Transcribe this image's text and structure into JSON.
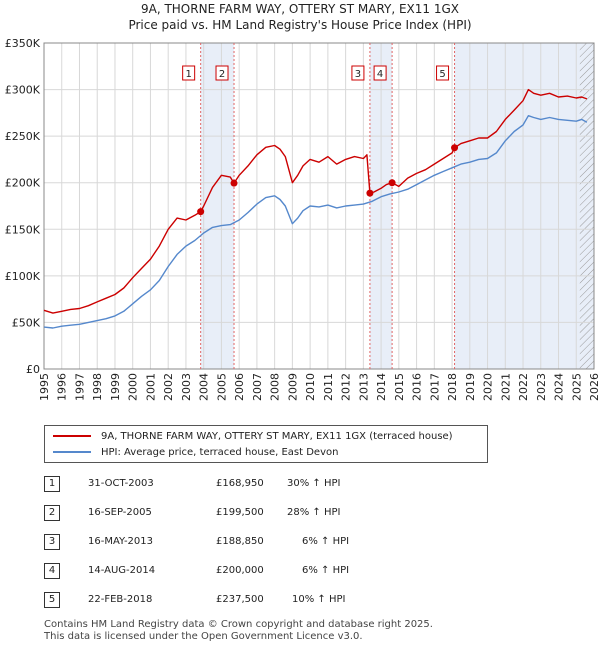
{
  "title_line1": "9A, THORNE FARM WAY, OTTERY ST MARY, EX11 1GX",
  "title_line2": "Price paid vs. HM Land Registry's House Price Index (HPI)",
  "colors": {
    "property": "#cc0000",
    "hpi": "#5588cc",
    "shade": "#e8eef8",
    "event": "#e06666"
  },
  "chart_data": {
    "type": "line",
    "title": "9A, THORNE FARM WAY, OTTERY ST MARY, EX11 1GX - Price paid vs. HM Land Registry's House Price Index (HPI)",
    "xlabel": "",
    "ylabel": "",
    "xlim": [
      1995,
      2026
    ],
    "ylim": [
      0,
      350000
    ],
    "x_ticks": [
      "1995",
      "1996",
      "1997",
      "1998",
      "1999",
      "2000",
      "2001",
      "2002",
      "2003",
      "2004",
      "2005",
      "2006",
      "2007",
      "2008",
      "2009",
      "2010",
      "2011",
      "2012",
      "2013",
      "2014",
      "2015",
      "2016",
      "2017",
      "2018",
      "2019",
      "2020",
      "2021",
      "2022",
      "2023",
      "2024",
      "2025",
      "2026"
    ],
    "y_ticks": [
      {
        "value": 0,
        "label": "£0"
      },
      {
        "value": 50000,
        "label": "£50K"
      },
      {
        "value": 100000,
        "label": "£100K"
      },
      {
        "value": 150000,
        "label": "£150K"
      },
      {
        "value": 200000,
        "label": "£200K"
      },
      {
        "value": 250000,
        "label": "£250K"
      },
      {
        "value": 300000,
        "label": "£300K"
      },
      {
        "value": 350000,
        "label": "£350K"
      }
    ],
    "shaded_spans": [
      [
        2003.83,
        2005.71
      ],
      [
        2013.37,
        2014.62
      ],
      [
        2018.14,
        2026
      ]
    ],
    "hatched_from": 2025.2,
    "grid": true,
    "series": [
      {
        "name": "9A, THORNE FARM WAY, OTTERY ST MARY, EX11 1GX (terraced house)",
        "color": "#cc0000",
        "x": [
          1995,
          1995.5,
          1996,
          1996.5,
          1997,
          1997.5,
          1998,
          1998.5,
          1999,
          1999.5,
          2000,
          2000.5,
          2001,
          2001.5,
          2002,
          2002.5,
          2003,
          2003.5,
          2003.83,
          2004,
          2004.5,
          2005,
          2005.5,
          2005.71,
          2006,
          2006.5,
          2007,
          2007.5,
          2008,
          2008.3,
          2008.6,
          2009,
          2009.3,
          2009.6,
          2010,
          2010.5,
          2011,
          2011.5,
          2012,
          2012.5,
          2013,
          2013.2,
          2013.37,
          2013.6,
          2014,
          2014.3,
          2014.62,
          2015,
          2015.5,
          2016,
          2016.5,
          2017,
          2017.5,
          2018,
          2018.14,
          2018.5,
          2019,
          2019.5,
          2020,
          2020.5,
          2021,
          2021.5,
          2022,
          2022.3,
          2022.6,
          2023,
          2023.5,
          2024,
          2024.5,
          2025,
          2025.3,
          2025.6
        ],
        "values": [
          63000,
          60000,
          62000,
          64000,
          65000,
          68000,
          72000,
          76000,
          80000,
          87000,
          98000,
          108000,
          118000,
          132000,
          150000,
          162000,
          160000,
          165000,
          168950,
          175000,
          195000,
          208000,
          206000,
          199500,
          208000,
          218000,
          230000,
          238000,
          240000,
          236000,
          228000,
          200000,
          208000,
          218000,
          225000,
          222000,
          228000,
          220000,
          225000,
          228000,
          226000,
          230000,
          188850,
          190000,
          194000,
          198000,
          200000,
          196000,
          205000,
          210000,
          214000,
          220000,
          226000,
          232000,
          237500,
          242000,
          245000,
          248000,
          248000,
          255000,
          268000,
          278000,
          288000,
          300000,
          296000,
          294000,
          296000,
          292000,
          293000,
          291000,
          292000,
          290000
        ]
      },
      {
        "name": "HPI: Average price, terraced house, East Devon",
        "color": "#5588cc",
        "x": [
          1995,
          1995.5,
          1996,
          1996.5,
          1997,
          1997.5,
          1998,
          1998.5,
          1999,
          1999.5,
          2000,
          2000.5,
          2001,
          2001.5,
          2002,
          2002.5,
          2003,
          2003.5,
          2004,
          2004.5,
          2005,
          2005.5,
          2006,
          2006.5,
          2007,
          2007.5,
          2008,
          2008.3,
          2008.6,
          2009,
          2009.3,
          2009.6,
          2010,
          2010.5,
          2011,
          2011.5,
          2012,
          2012.5,
          2013,
          2013.5,
          2014,
          2014.5,
          2015,
          2015.5,
          2016,
          2016.5,
          2017,
          2017.5,
          2018,
          2018.5,
          2019,
          2019.5,
          2020,
          2020.5,
          2021,
          2021.5,
          2022,
          2022.3,
          2022.6,
          2023,
          2023.5,
          2024,
          2024.5,
          2025,
          2025.3,
          2025.6
        ],
        "values": [
          45000,
          44000,
          46000,
          47000,
          48000,
          50000,
          52000,
          54000,
          57000,
          62000,
          70000,
          78000,
          85000,
          95000,
          110000,
          123000,
          132000,
          138000,
          146000,
          152000,
          154000,
          155000,
          160000,
          168000,
          177000,
          184000,
          186000,
          182000,
          175000,
          156000,
          162000,
          170000,
          175000,
          174000,
          176000,
          173000,
          175000,
          176000,
          177000,
          180000,
          185000,
          188000,
          190000,
          193000,
          198000,
          203000,
          208000,
          212000,
          216000,
          220000,
          222000,
          225000,
          226000,
          232000,
          245000,
          255000,
          262000,
          272000,
          270000,
          268000,
          270000,
          268000,
          267000,
          266000,
          268000,
          265000
        ]
      }
    ],
    "events": [
      {
        "label": "1",
        "x": 2003.83,
        "value": 168950
      },
      {
        "label": "2",
        "x": 2005.71,
        "value": 199500
      },
      {
        "label": "3",
        "x": 2013.37,
        "value": 188850
      },
      {
        "label": "4",
        "x": 2014.62,
        "value": 200000
      },
      {
        "label": "5",
        "x": 2018.14,
        "value": 237500
      }
    ]
  },
  "legend": {
    "property_label": "9A, THORNE FARM WAY, OTTERY ST MARY, EX11 1GX (terraced house)",
    "hpi_label": "HPI: Average price, terraced house, East Devon"
  },
  "transactions": [
    {
      "num": "1",
      "date": "31-OCT-2003",
      "price": "£168,950",
      "hpi": "30% ↑ HPI"
    },
    {
      "num": "2",
      "date": "16-SEP-2005",
      "price": "£199,500",
      "hpi": "28% ↑ HPI"
    },
    {
      "num": "3",
      "date": "16-MAY-2013",
      "price": "£188,850",
      "hpi": "6% ↑ HPI"
    },
    {
      "num": "4",
      "date": "14-AUG-2014",
      "price": "£200,000",
      "hpi": "6% ↑ HPI"
    },
    {
      "num": "5",
      "date": "22-FEB-2018",
      "price": "£237,500",
      "hpi": "10% ↑ HPI"
    }
  ],
  "footer_line1": "Contains HM Land Registry data © Crown copyright and database right 2025.",
  "footer_line2": "This data is licensed under the Open Government Licence v3.0."
}
